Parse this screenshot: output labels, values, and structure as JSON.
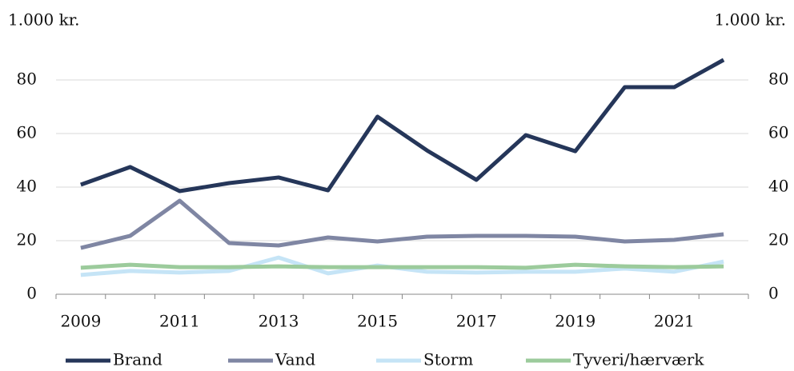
{
  "chart_data": {
    "type": "line",
    "y_label": "1.000 kr.",
    "y2_label": "1.000 kr.",
    "categories": [
      "2009",
      null,
      "2011",
      null,
      "2013",
      null,
      "2015",
      null,
      "2017",
      null,
      "2019",
      null,
      "2021",
      null
    ],
    "series": [
      {
        "name": "Brand",
        "color": "#253659",
        "values": [
          40.9,
          47.5,
          38.5,
          41.5,
          43.6,
          38.8,
          66.3,
          53.7,
          42.7,
          59.4,
          53.4,
          77.3,
          77.3,
          87.5
        ]
      },
      {
        "name": "Vand",
        "color": "#7f86a3",
        "values": [
          17.3,
          21.8,
          34.9,
          19.1,
          18.2,
          21.2,
          19.7,
          21.5,
          21.8,
          21.8,
          21.5,
          19.7,
          20.3,
          22.4
        ]
      },
      {
        "name": "Storm",
        "color": "#c5e4f6",
        "values": [
          7.2,
          8.7,
          8.1,
          8.7,
          13.7,
          7.8,
          10.7,
          8.4,
          8.1,
          8.4,
          8.4,
          9.6,
          8.4,
          12.2
        ]
      },
      {
        "name": "Tyveri/hærværk",
        "color": "#9ccb9c",
        "values": [
          9.9,
          11.0,
          10.1,
          10.1,
          10.4,
          10.1,
          10.1,
          10.1,
          10.1,
          9.9,
          11.0,
          10.4,
          10.1,
          10.4
        ]
      }
    ],
    "ylim": [
      0,
      80
    ],
    "yticks": [
      0,
      20,
      40,
      60,
      80
    ],
    "y2lim": [
      0,
      80
    ],
    "y2ticks": [
      0,
      20,
      40,
      60,
      80
    ],
    "grid": true,
    "legend": "bottom"
  }
}
